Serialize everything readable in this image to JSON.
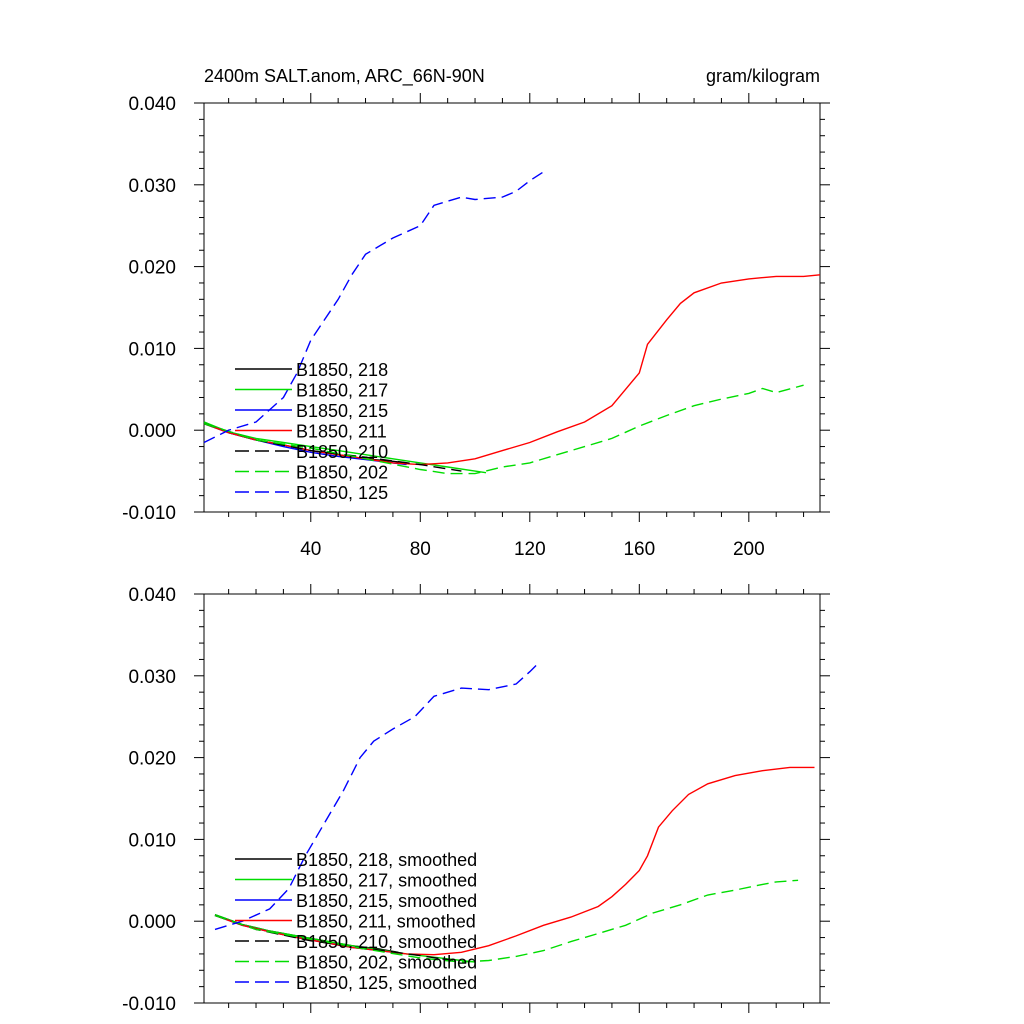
{
  "chart_data": [
    {
      "type": "line",
      "title": "2400m SALT.anom, ARC_66N-90N",
      "units": "gram/kilogram",
      "xlim": [
        1,
        226
      ],
      "ylim": [
        -0.01,
        0.04
      ],
      "x_ticks": [
        "40",
        "80",
        "120",
        "160",
        "200"
      ],
      "y_ticks": [
        "0.040",
        "0.030",
        "0.020",
        "0.010",
        "0.000",
        "-0.010"
      ],
      "legend_position": "lower-left",
      "series": [
        {
          "name": "B1850, 218",
          "color": "#000000",
          "dash": "solid",
          "points": [
            [
              1,
              0.001
            ],
            [
              10,
              -0.0003
            ],
            [
              20,
              -0.0012
            ],
            [
              30,
              -0.0018
            ],
            [
              40,
              -0.0025
            ],
            [
              50,
              -0.003
            ],
            [
              60,
              -0.0035
            ],
            [
              70,
              -0.0038
            ],
            [
              75,
              -0.004
            ]
          ]
        },
        {
          "name": "B1850, 217",
          "color": "#00dd00",
          "dash": "solid",
          "points": [
            [
              1,
              0.001
            ],
            [
              10,
              -0.0002
            ],
            [
              20,
              -0.001
            ],
            [
              30,
              -0.0015
            ],
            [
              40,
              -0.002
            ],
            [
              50,
              -0.0025
            ],
            [
              60,
              -0.003
            ],
            [
              70,
              -0.0035
            ],
            [
              80,
              -0.004
            ],
            [
              90,
              -0.0045
            ],
            [
              100,
              -0.005
            ],
            [
              104,
              -0.0052
            ]
          ]
        },
        {
          "name": "B1850, 215",
          "color": "#0000ff",
          "dash": "solid",
          "points": [
            [
              1,
              0.0008
            ],
            [
              10,
              -0.0003
            ],
            [
              20,
              -0.0012
            ],
            [
              30,
              -0.002
            ],
            [
              40,
              -0.0027
            ],
            [
              50,
              -0.0032
            ],
            [
              60,
              -0.0036
            ],
            [
              70,
              -0.004
            ],
            [
              75,
              -0.0042
            ]
          ]
        },
        {
          "name": "B1850, 211",
          "color": "#ff0000",
          "dash": "solid",
          "points": [
            [
              1,
              0.0008
            ],
            [
              10,
              -0.0003
            ],
            [
              20,
              -0.0012
            ],
            [
              30,
              -0.0018
            ],
            [
              40,
              -0.0025
            ],
            [
              50,
              -0.003
            ],
            [
              60,
              -0.0035
            ],
            [
              70,
              -0.004
            ],
            [
              80,
              -0.0042
            ],
            [
              90,
              -0.004
            ],
            [
              100,
              -0.0035
            ],
            [
              110,
              -0.0025
            ],
            [
              120,
              -0.0015
            ],
            [
              130,
              -0.0002
            ],
            [
              140,
              0.001
            ],
            [
              150,
              0.003
            ],
            [
              155,
              0.005
            ],
            [
              160,
              0.007
            ],
            [
              163,
              0.0105
            ],
            [
              170,
              0.0135
            ],
            [
              175,
              0.0155
            ],
            [
              180,
              0.0168
            ],
            [
              190,
              0.018
            ],
            [
              200,
              0.0185
            ],
            [
              210,
              0.0188
            ],
            [
              220,
              0.0188
            ],
            [
              226,
              0.019
            ]
          ]
        },
        {
          "name": "B1850, 210",
          "color": "#000000",
          "dash": "dashed",
          "points": [
            [
              1,
              0.0008
            ],
            [
              20,
              -0.0012
            ],
            [
              40,
              -0.0025
            ],
            [
              60,
              -0.0033
            ],
            [
              80,
              -0.0042
            ],
            [
              95,
              -0.005
            ]
          ]
        },
        {
          "name": "B1850, 202",
          "color": "#00dd00",
          "dash": "dashed",
          "points": [
            [
              1,
              0.0008
            ],
            [
              20,
              -0.0012
            ],
            [
              40,
              -0.0022
            ],
            [
              60,
              -0.0035
            ],
            [
              80,
              -0.0048
            ],
            [
              90,
              -0.0053
            ],
            [
              100,
              -0.0053
            ],
            [
              110,
              -0.0045
            ],
            [
              120,
              -0.004
            ],
            [
              130,
              -0.003
            ],
            [
              140,
              -0.002
            ],
            [
              150,
              -0.001
            ],
            [
              160,
              0.0005
            ],
            [
              170,
              0.0018
            ],
            [
              180,
              0.003
            ],
            [
              190,
              0.0038
            ],
            [
              200,
              0.0045
            ],
            [
              205,
              0.0051
            ],
            [
              210,
              0.0046
            ],
            [
              220,
              0.0055
            ]
          ]
        },
        {
          "name": "B1850, 125",
          "color": "#0000ff",
          "dash": "dashed",
          "points": [
            [
              1,
              -0.0015
            ],
            [
              10,
              0.0
            ],
            [
              20,
              0.001
            ],
            [
              30,
              0.004
            ],
            [
              35,
              0.007
            ],
            [
              40,
              0.011
            ],
            [
              50,
              0.016
            ],
            [
              55,
              0.019
            ],
            [
              60,
              0.0215
            ],
            [
              70,
              0.0235
            ],
            [
              80,
              0.025
            ],
            [
              85,
              0.0275
            ],
            [
              90,
              0.028
            ],
            [
              95,
              0.0285
            ],
            [
              100,
              0.0282
            ],
            [
              110,
              0.0285
            ],
            [
              115,
              0.0292
            ],
            [
              120,
              0.0305
            ],
            [
              126,
              0.0318
            ]
          ]
        }
      ]
    },
    {
      "type": "line",
      "title": "",
      "units": "",
      "xlim": [
        1,
        226
      ],
      "ylim": [
        -0.01,
        0.04
      ],
      "x_ticks": [],
      "y_ticks": [
        "0.040",
        "0.030",
        "0.020",
        "0.010",
        "0.000",
        "-0.010"
      ],
      "legend_position": "lower-left",
      "series": [
        {
          "name": "B1850, 218, smoothed",
          "color": "#000000",
          "dash": "solid",
          "points": [
            [
              5,
              0.0008
            ],
            [
              15,
              -0.0004
            ],
            [
              25,
              -0.0012
            ],
            [
              35,
              -0.0018
            ],
            [
              45,
              -0.0024
            ],
            [
              55,
              -0.003
            ],
            [
              65,
              -0.0034
            ],
            [
              72,
              -0.0038
            ]
          ]
        },
        {
          "name": "B1850, 217, smoothed",
          "color": "#00dd00",
          "dash": "solid",
          "points": [
            [
              5,
              0.0008
            ],
            [
              15,
              -0.0004
            ],
            [
              25,
              -0.0012
            ],
            [
              35,
              -0.0018
            ],
            [
              45,
              -0.0024
            ],
            [
              55,
              -0.003
            ],
            [
              65,
              -0.0035
            ],
            [
              75,
              -0.004
            ],
            [
              85,
              -0.0044
            ],
            [
              95,
              -0.0048
            ],
            [
              100,
              -0.005
            ]
          ]
        },
        {
          "name": "B1850, 215, smoothed",
          "color": "#0000ff",
          "dash": "solid",
          "points": [
            [
              5,
              0.0007
            ],
            [
              15,
              -0.0005
            ],
            [
              25,
              -0.0013
            ],
            [
              35,
              -0.002
            ],
            [
              45,
              -0.0026
            ],
            [
              55,
              -0.0032
            ],
            [
              65,
              -0.0036
            ],
            [
              72,
              -0.0039
            ]
          ]
        },
        {
          "name": "B1850, 211, smoothed",
          "color": "#ff0000",
          "dash": "solid",
          "points": [
            [
              5,
              0.0007
            ],
            [
              15,
              -0.0005
            ],
            [
              25,
              -0.0013
            ],
            [
              35,
              -0.002
            ],
            [
              45,
              -0.0026
            ],
            [
              55,
              -0.0032
            ],
            [
              65,
              -0.0036
            ],
            [
              75,
              -0.004
            ],
            [
              85,
              -0.0041
            ],
            [
              95,
              -0.0038
            ],
            [
              105,
              -0.003
            ],
            [
              115,
              -0.0018
            ],
            [
              125,
              -0.0005
            ],
            [
              135,
              0.0005
            ],
            [
              145,
              0.0018
            ],
            [
              150,
              0.003
            ],
            [
              155,
              0.0045
            ],
            [
              160,
              0.0062
            ],
            [
              163,
              0.008
            ],
            [
              167,
              0.0115
            ],
            [
              172,
              0.0135
            ],
            [
              178,
              0.0155
            ],
            [
              185,
              0.0168
            ],
            [
              195,
              0.0178
            ],
            [
              205,
              0.0184
            ],
            [
              215,
              0.0188
            ],
            [
              224,
              0.0188
            ]
          ]
        },
        {
          "name": "B1850, 210, smoothed",
          "color": "#000000",
          "dash": "dashed",
          "points": [
            [
              5,
              0.0007
            ],
            [
              20,
              -0.001
            ],
            [
              40,
              -0.0024
            ],
            [
              60,
              -0.0033
            ],
            [
              80,
              -0.0042
            ],
            [
              92,
              -0.0048
            ]
          ]
        },
        {
          "name": "B1850, 202, smoothed",
          "color": "#00dd00",
          "dash": "dashed",
          "points": [
            [
              5,
              0.0007
            ],
            [
              20,
              -0.001
            ],
            [
              40,
              -0.0022
            ],
            [
              60,
              -0.0034
            ],
            [
              80,
              -0.0045
            ],
            [
              95,
              -0.005
            ],
            [
              105,
              -0.0048
            ],
            [
              115,
              -0.0043
            ],
            [
              125,
              -0.0036
            ],
            [
              135,
              -0.0025
            ],
            [
              145,
              -0.0015
            ],
            [
              155,
              -0.0005
            ],
            [
              165,
              0.001
            ],
            [
              175,
              0.002
            ],
            [
              185,
              0.0032
            ],
            [
              195,
              0.0038
            ],
            [
              205,
              0.0045
            ],
            [
              210,
              0.0048
            ],
            [
              218,
              0.005
            ]
          ]
        },
        {
          "name": "B1850, 125, smoothed",
          "color": "#0000ff",
          "dash": "dashed",
          "points": [
            [
              5,
              -0.001
            ],
            [
              15,
              0.0
            ],
            [
              25,
              0.0015
            ],
            [
              32,
              0.004
            ],
            [
              38,
              0.008
            ],
            [
              45,
              0.012
            ],
            [
              52,
              0.016
            ],
            [
              58,
              0.02
            ],
            [
              63,
              0.022
            ],
            [
              70,
              0.0235
            ],
            [
              78,
              0.025
            ],
            [
              85,
              0.0275
            ],
            [
              90,
              0.028
            ],
            [
              95,
              0.0285
            ],
            [
              105,
              0.0283
            ],
            [
              115,
              0.029
            ],
            [
              120,
              0.0305
            ],
            [
              123,
              0.0315
            ]
          ]
        }
      ]
    }
  ]
}
